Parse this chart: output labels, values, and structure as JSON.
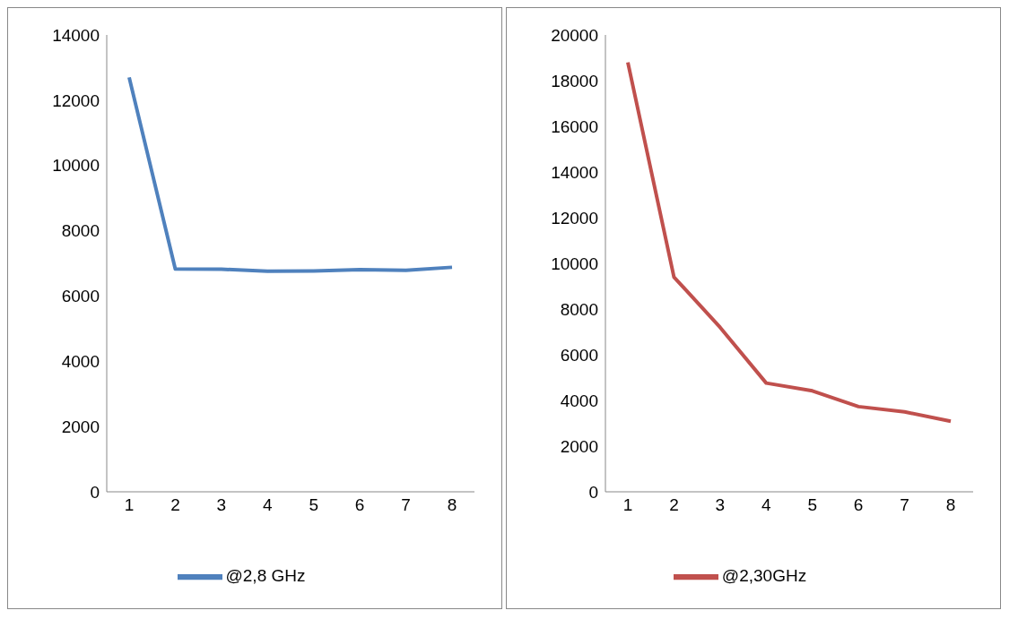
{
  "chart_data": [
    {
      "type": "line",
      "categories": [
        "1",
        "2",
        "3",
        "4",
        "5",
        "6",
        "7",
        "8"
      ],
      "series": [
        {
          "name": "@2,8 GHz",
          "color": "#4f81bd",
          "values": [
            12700,
            6830,
            6820,
            6760,
            6770,
            6810,
            6790,
            6880
          ]
        }
      ],
      "ylim": [
        0,
        14000
      ],
      "yticks": [
        0,
        2000,
        4000,
        6000,
        8000,
        10000,
        12000,
        14000
      ],
      "grid": false,
      "legend": "bottom",
      "marker": "none"
    },
    {
      "type": "line",
      "categories": [
        "1",
        "2",
        "3",
        "4",
        "5",
        "6",
        "7",
        "8"
      ],
      "series": [
        {
          "name": "@2,30GHz",
          "color": "#c0504d",
          "values": [
            18800,
            9400,
            7200,
            4760,
            4420,
            3730,
            3500,
            3090
          ]
        }
      ],
      "ylim": [
        0,
        20000
      ],
      "yticks": [
        0,
        2000,
        4000,
        6000,
        8000,
        10000,
        12000,
        14000,
        16000,
        18000,
        20000
      ],
      "grid": false,
      "legend": "bottom",
      "marker": "none"
    }
  ]
}
